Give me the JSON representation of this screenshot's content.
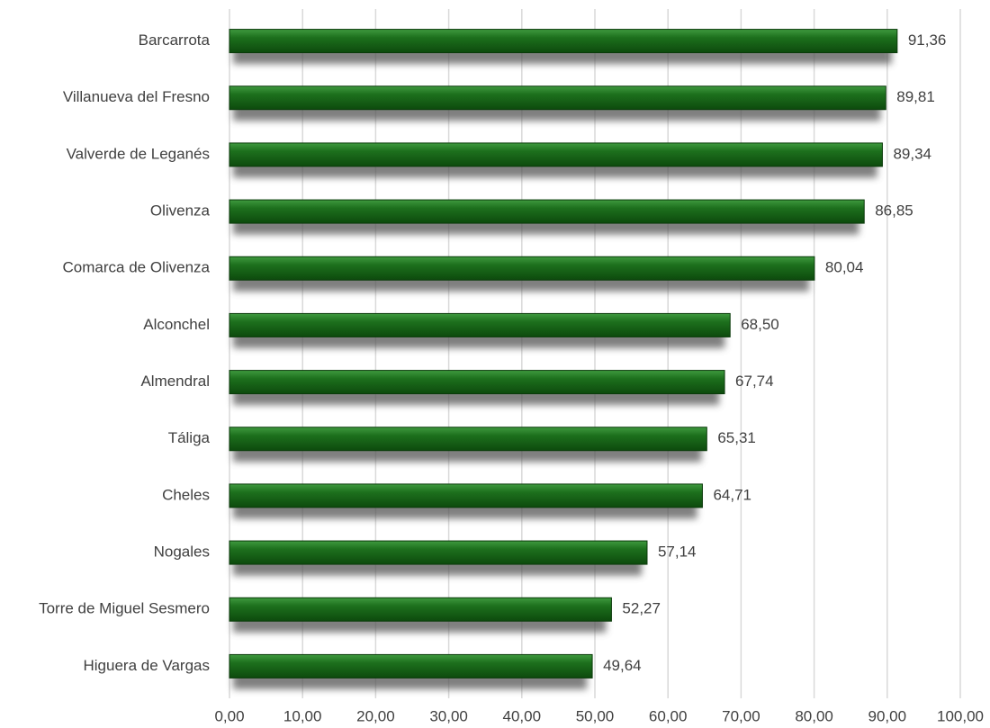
{
  "chart_data": {
    "type": "barh",
    "categories": [
      "Barcarrota",
      "Villanueva del Fresno",
      "Valverde de Leganés",
      "Olivenza",
      "Comarca de Olivenza",
      "Alconchel",
      "Almendral",
      "Táliga",
      "Cheles",
      "Nogales",
      "Torre de Miguel Sesmero",
      "Higuera de Vargas"
    ],
    "values": [
      91.36,
      89.81,
      89.34,
      86.85,
      80.04,
      68.5,
      67.74,
      65.31,
      64.71,
      57.14,
      52.27,
      49.64
    ],
    "value_labels": [
      "91,36",
      "89,81",
      "89,34",
      "86,85",
      "80,04",
      "68,50",
      "67,74",
      "65,31",
      "64,71",
      "57,14",
      "52,27",
      "49,64"
    ],
    "color": "#1c6e1c",
    "xlim": [
      0,
      100
    ],
    "xticks": [
      {
        "value": 0,
        "label": "0,00"
      },
      {
        "value": 10,
        "label": "10,00"
      },
      {
        "value": 20,
        "label": "20,00"
      },
      {
        "value": 30,
        "label": "30,00"
      },
      {
        "value": 40,
        "label": "40,00"
      },
      {
        "value": 50,
        "label": "50,00"
      },
      {
        "value": 60,
        "label": "60,00"
      },
      {
        "value": 70,
        "label": "70,00"
      },
      {
        "value": 80,
        "label": "80,00"
      },
      {
        "value": 90,
        "label": "90,00"
      },
      {
        "value": 100,
        "label": "100,00"
      }
    ],
    "grid": true
  }
}
